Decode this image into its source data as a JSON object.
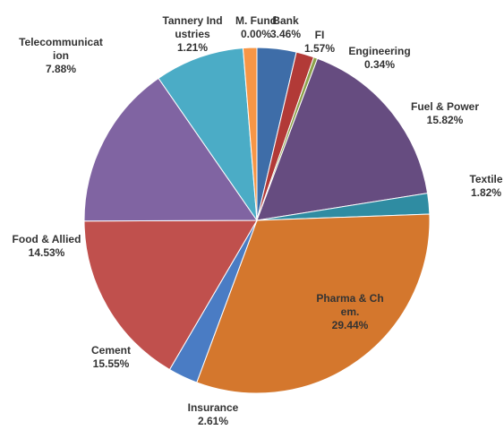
{
  "chart_data": {
    "type": "pie",
    "categories": [
      "Bank",
      "FI",
      "Engineering",
      "Fuel & Power",
      "Textile",
      "Pharma & Chem.",
      "Insurance",
      "Cement",
      "Food & Allied",
      "Telecommunication",
      "Tannery Industries",
      "M. Fund"
    ],
    "values": [
      3.46,
      1.57,
      0.34,
      15.82,
      1.82,
      29.44,
      2.61,
      15.55,
      14.53,
      7.88,
      1.21,
      0.0
    ],
    "value_labels": [
      "3.46%",
      "1.57%",
      "0.34%",
      "15.82%",
      "1.82%",
      "29.44%",
      "2.61%",
      "15.55%",
      "14.53%",
      "7.88%",
      "1.21%",
      "0.00%"
    ],
    "colors": [
      "#3e6da8",
      "#b23a37",
      "#8da24c",
      "#664c80",
      "#2f8ca2",
      "#d4772d",
      "#4a7cc4",
      "#c0504d",
      "#8064a2",
      "#4bacc6",
      "#f79646",
      "#d9a8c8"
    ]
  }
}
